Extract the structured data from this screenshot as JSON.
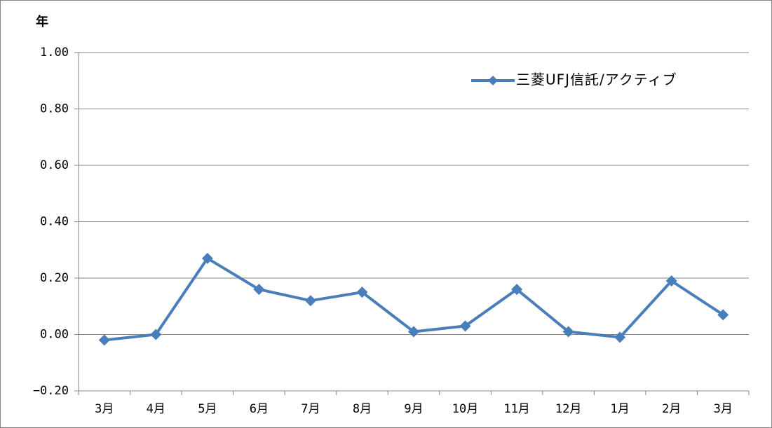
{
  "chart_data": {
    "type": "line",
    "y_axis_label": "年",
    "categories": [
      "3月",
      "4月",
      "5月",
      "6月",
      "7月",
      "8月",
      "9月",
      "10月",
      "11月",
      "12月",
      "1月",
      "2月",
      "3月"
    ],
    "series": [
      {
        "name": "三菱UFJ信託/アクティブ",
        "color": "#4a7ebb",
        "values": [
          -0.02,
          0.0,
          0.27,
          0.16,
          0.12,
          0.15,
          0.01,
          0.03,
          0.16,
          0.01,
          -0.01,
          0.19,
          0.07
        ]
      }
    ],
    "ylim": [
      -0.2,
      1.0
    ],
    "yticks": [
      {
        "value": -0.2,
        "label": "−0.20"
      },
      {
        "value": 0,
        "label": "0.00"
      },
      {
        "value": 0.2,
        "label": "0.20"
      },
      {
        "value": 0.4,
        "label": "0.40"
      },
      {
        "value": 0.6,
        "label": "0.60"
      },
      {
        "value": 0.8,
        "label": "0.80"
      },
      {
        "value": 1.0,
        "label": "1.00"
      }
    ],
    "grid": true,
    "legend": "top-right"
  }
}
